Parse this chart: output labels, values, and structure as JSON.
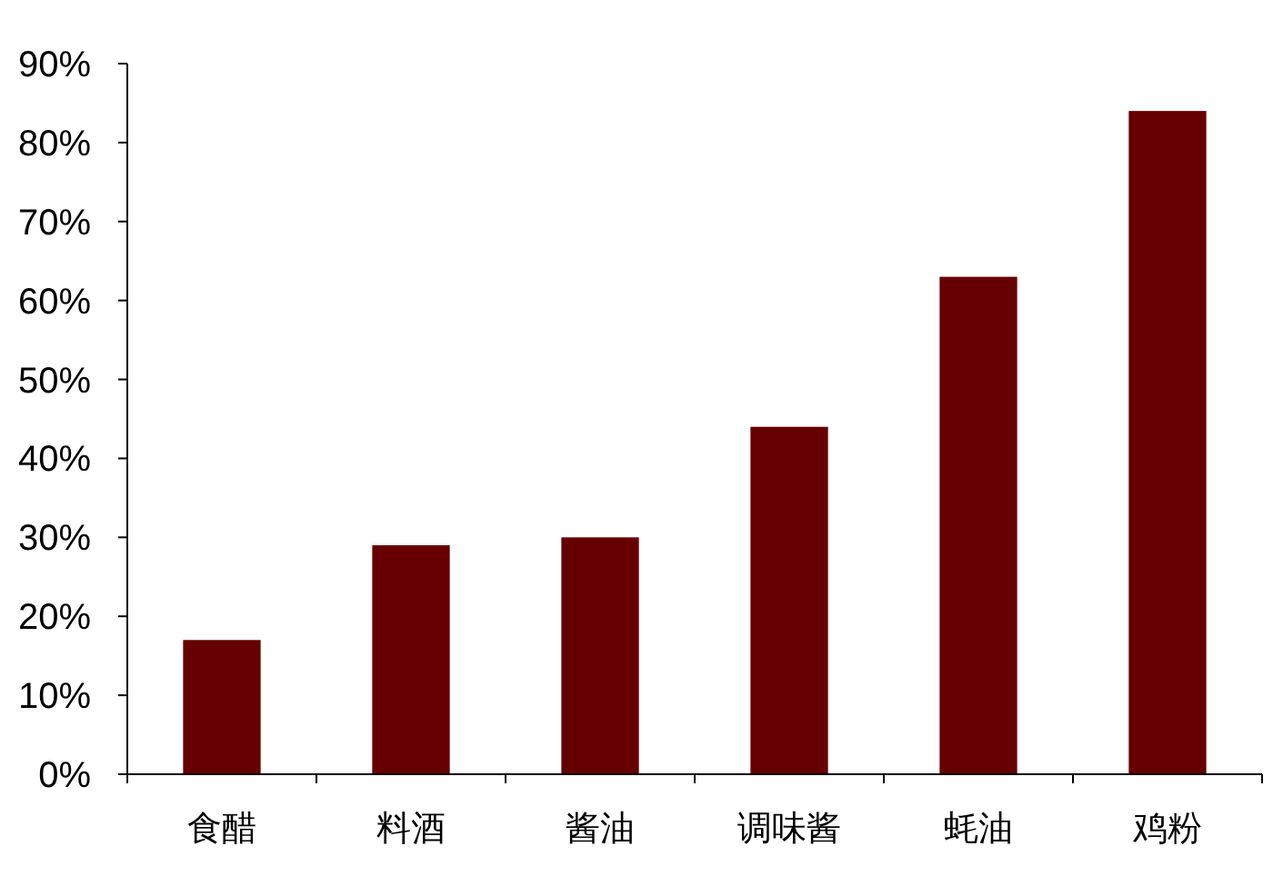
{
  "chart_data": {
    "type": "bar",
    "categories": [
      "食醋",
      "料酒",
      "酱油",
      "调味酱",
      "蚝油",
      "鸡粉"
    ],
    "values": [
      17,
      29,
      30,
      44,
      63,
      84
    ],
    "color": "#660000",
    "ylim": [
      0,
      90
    ],
    "yticks": [
      {
        "value": 0,
        "label": "0%"
      },
      {
        "value": 10,
        "label": "10%"
      },
      {
        "value": 20,
        "label": "20%"
      },
      {
        "value": 30,
        "label": "30%"
      },
      {
        "value": 40,
        "label": "40%"
      },
      {
        "value": 50,
        "label": "50%"
      },
      {
        "value": 60,
        "label": "60%"
      },
      {
        "value": 70,
        "label": "70%"
      },
      {
        "value": 80,
        "label": "80%"
      },
      {
        "value": 90,
        "label": "90%"
      }
    ],
    "grid": false
  }
}
